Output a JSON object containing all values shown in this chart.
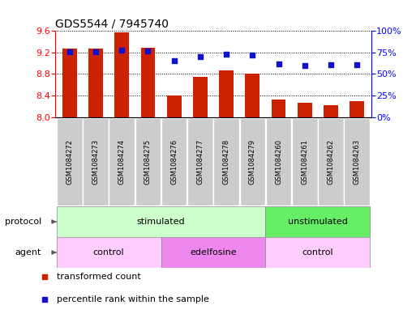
{
  "title": "GDS5544 / 7945740",
  "samples": [
    "GSM1084272",
    "GSM1084273",
    "GSM1084274",
    "GSM1084275",
    "GSM1084276",
    "GSM1084277",
    "GSM1084278",
    "GSM1084279",
    "GSM1084260",
    "GSM1084261",
    "GSM1084262",
    "GSM1084263"
  ],
  "red_values": [
    9.27,
    9.27,
    9.57,
    9.28,
    8.41,
    8.75,
    8.87,
    8.8,
    8.33,
    8.27,
    8.23,
    8.3
  ],
  "blue_values": [
    76,
    76,
    78,
    77,
    65,
    70,
    73,
    72,
    62,
    60,
    61,
    61
  ],
  "ylim_left": [
    8.0,
    9.6
  ],
  "ylim_right": [
    0,
    100
  ],
  "yticks_left": [
    8.0,
    8.4,
    8.8,
    9.2,
    9.6
  ],
  "yticks_right": [
    0,
    25,
    50,
    75,
    100
  ],
  "ytick_labels_right": [
    "0%",
    "25%",
    "50%",
    "75%",
    "100%"
  ],
  "bar_color": "#cc2200",
  "dot_color": "#1111cc",
  "protocol_groups": [
    {
      "label": "stimulated",
      "start": 0,
      "end": 7,
      "color": "#ccffcc"
    },
    {
      "label": "unstimulated",
      "start": 8,
      "end": 11,
      "color": "#66ee66"
    }
  ],
  "agent_groups": [
    {
      "label": "control",
      "start": 0,
      "end": 3,
      "color": "#ffccff"
    },
    {
      "label": "edelfosine",
      "start": 4,
      "end": 7,
      "color": "#ee88ee"
    },
    {
      "label": "control",
      "start": 8,
      "end": 11,
      "color": "#ffccff"
    }
  ],
  "protocol_label": "protocol",
  "agent_label": "agent",
  "legend_red": "transformed count",
  "legend_blue": "percentile rank within the sample",
  "title_fontsize": 10,
  "tick_fontsize": 8,
  "row_fontsize": 8,
  "sample_fontsize": 6,
  "legend_fontsize": 8
}
